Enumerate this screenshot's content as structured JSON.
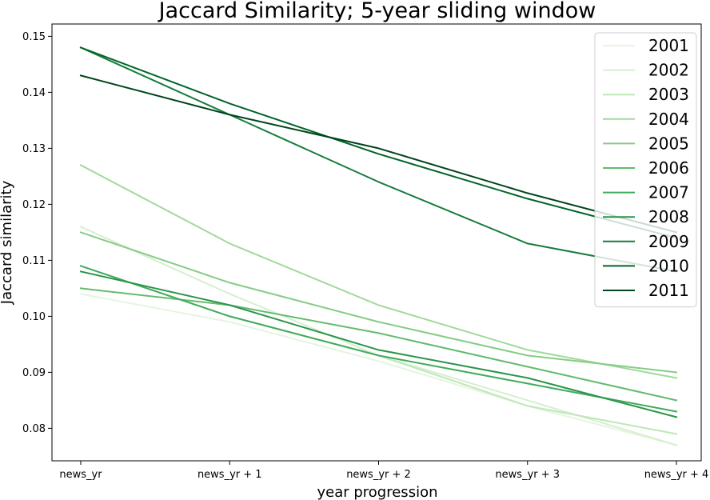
{
  "chart_data": {
    "type": "line",
    "title": "Jaccard Similarity; 5-year sliding window",
    "xlabel": "year progression",
    "ylabel": "Jaccard similarity",
    "categories": [
      "news_yr",
      "news_yr + 1",
      "news_yr + 2",
      "news_yr + 3",
      "news_yr + 4"
    ],
    "ylim": [
      0.0742,
      0.1522
    ],
    "yticks": [
      0.08,
      0.09,
      0.1,
      0.11,
      0.12,
      0.13,
      0.14,
      0.15
    ],
    "ytick_labels": [
      "0.08",
      "0.09",
      "0.10",
      "0.11",
      "0.12",
      "0.13",
      "0.14",
      "0.15"
    ],
    "grid": false,
    "legend_position": "top-right",
    "series": [
      {
        "name": "2001",
        "color": "#e5f5e0",
        "values": [
          0.104,
          0.099,
          0.092,
          0.084,
          0.077
        ]
      },
      {
        "name": "2002",
        "color": "#d5efcf",
        "values": [
          0.116,
          0.104,
          0.093,
          0.085,
          0.077
        ]
      },
      {
        "name": "2003",
        "color": "#bfe6b8",
        "values": [
          0.109,
          0.1,
          0.093,
          0.084,
          0.079
        ]
      },
      {
        "name": "2004",
        "color": "#a2d99c",
        "values": [
          0.127,
          0.113,
          0.102,
          0.094,
          0.089
        ]
      },
      {
        "name": "2005",
        "color": "#86cc85",
        "values": [
          0.115,
          0.106,
          0.099,
          0.093,
          0.09
        ]
      },
      {
        "name": "2006",
        "color": "#64bb6e",
        "values": [
          0.105,
          0.102,
          0.097,
          0.091,
          0.085
        ]
      },
      {
        "name": "2007",
        "color": "#41ab5d",
        "values": [
          0.109,
          0.1,
          0.093,
          0.088,
          0.083
        ]
      },
      {
        "name": "2008",
        "color": "#2c944c",
        "values": [
          0.108,
          0.102,
          0.094,
          0.089,
          0.082
        ]
      },
      {
        "name": "2009",
        "color": "#167c3b",
        "values": [
          0.148,
          0.136,
          0.124,
          0.113,
          0.108
        ]
      },
      {
        "name": "2010",
        "color": "#006428",
        "values": [
          0.148,
          0.138,
          0.129,
          0.121,
          0.114
        ]
      },
      {
        "name": "2011",
        "color": "#00441b",
        "values": [
          0.143,
          0.136,
          0.13,
          0.122,
          0.115
        ]
      }
    ]
  }
}
